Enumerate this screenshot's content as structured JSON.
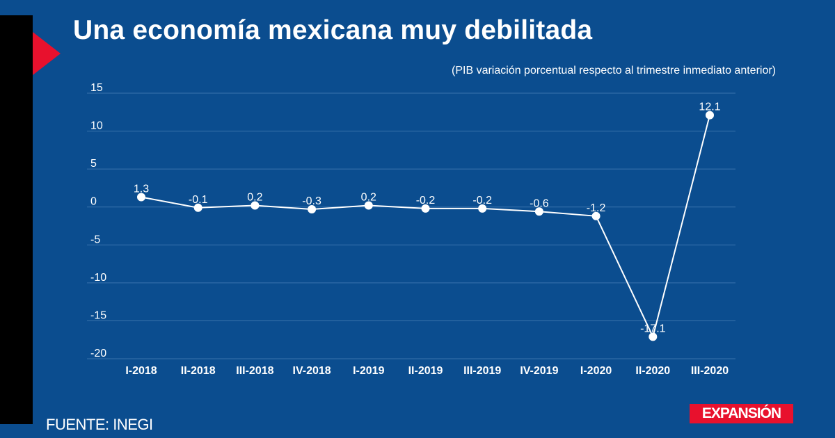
{
  "title": "Una economía mexicana muy debilitada",
  "subtitle": "(PIB variación porcentual respecto al trimestre inmediato anterior)",
  "source": "FUENTE: INEGI",
  "brand": {
    "logo_text": "EXPANSIÓN",
    "accent_color": "#e8112d",
    "background_color": "#0b4d8f"
  },
  "chart_data": {
    "type": "line",
    "title": "Una economía mexicana muy debilitada",
    "subtitle": "(PIB variación porcentual respecto al trimestre inmediato anterior)",
    "xlabel": "",
    "ylabel": "",
    "ylim": [
      -20,
      15
    ],
    "yticks": [
      15,
      10,
      5,
      0,
      -5,
      -10,
      -15,
      -20
    ],
    "grid": true,
    "legend": "none",
    "categories": [
      "I-2018",
      "II-2018",
      "III-2018",
      "IV-2018",
      "I-2019",
      "II-2019",
      "III-2019",
      "IV-2019",
      "I-2020",
      "II-2020",
      "III-2020"
    ],
    "values": [
      1.3,
      -0.1,
      0.2,
      -0.3,
      0.2,
      -0.2,
      -0.2,
      -0.6,
      -1.2,
      -17.1,
      12.1
    ],
    "data_labels": [
      "1.3",
      "-0.1",
      "0.2",
      "-0.3",
      "0.2",
      "-0.2",
      "-0.2",
      "-0.6",
      "-1.2",
      "-17.1",
      "12.1"
    ]
  }
}
